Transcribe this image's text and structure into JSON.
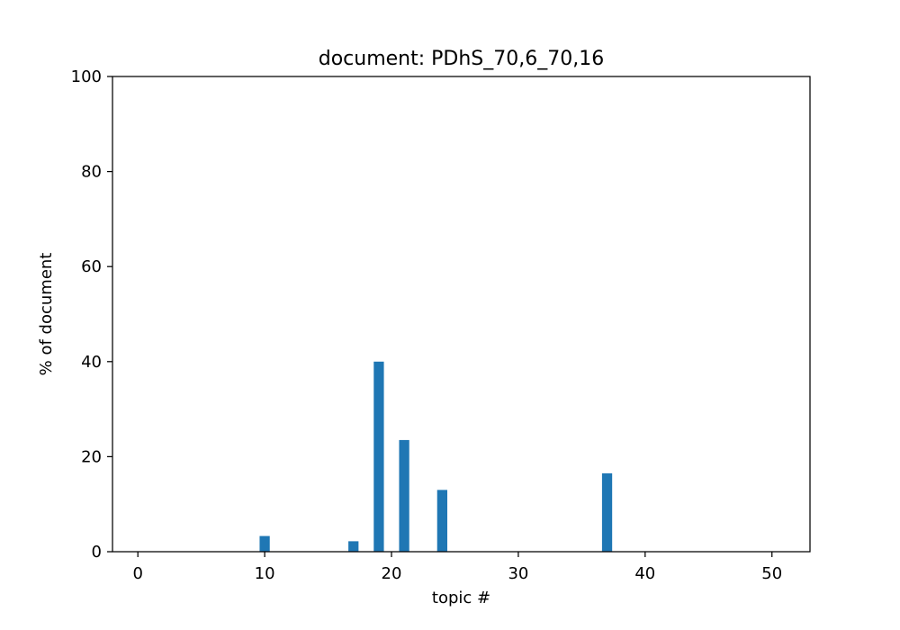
{
  "chart_data": {
    "type": "bar",
    "title": "document: PDhS_70,6_70,16",
    "xlabel": "topic #",
    "ylabel": "% of document",
    "xlim": [
      -2,
      53
    ],
    "ylim": [
      0,
      100
    ],
    "xticks": [
      0,
      10,
      20,
      30,
      40,
      50
    ],
    "yticks": [
      0,
      20,
      40,
      60,
      80,
      100
    ],
    "grid": false,
    "bar_color": "#1f77b4",
    "bar_width": 0.8,
    "series": [
      {
        "x": [
          10,
          17,
          19,
          21,
          24,
          37
        ],
        "values": [
          3.3,
          2.2,
          40.0,
          23.5,
          13.0,
          16.5
        ]
      }
    ]
  }
}
